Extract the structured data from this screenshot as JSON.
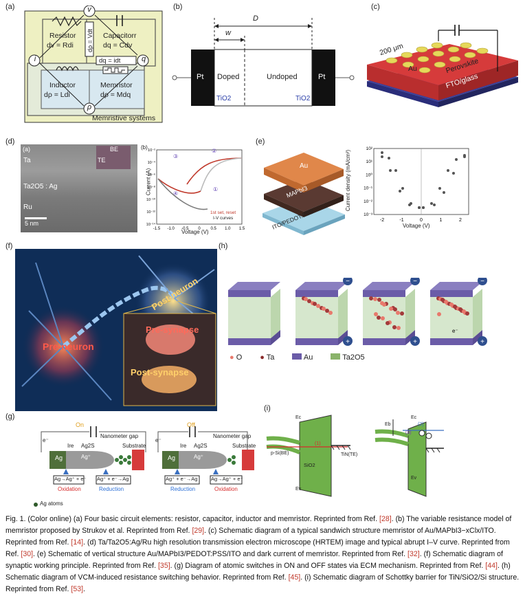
{
  "panels": {
    "a": {
      "label": "(a)",
      "nodes": [
        "v",
        "i",
        "q",
        "ρ"
      ],
      "resistor": {
        "name": "Resistor",
        "eq": "dv = Rdi"
      },
      "capacitor": {
        "name": "Capacitorr",
        "eq": "dq = Cdv"
      },
      "inductor": {
        "name": "Inductor",
        "eq": "dρ = Ldi"
      },
      "memristor": {
        "name": "Memristor",
        "eq": "dρ = Mdq"
      },
      "vertical_eq": "dρ = Vdt",
      "horizontal_eq": "dq = idt",
      "systems": "Memristive systems"
    },
    "b": {
      "label": "(b)",
      "D": "D",
      "w": "w",
      "pt_left": "Pt",
      "pt_right": "Pt",
      "doped": "Doped",
      "undoped": "Undoped",
      "tio2_left": "TiO2",
      "tio2_right": "TiO2"
    },
    "c": {
      "label": "(c)",
      "size": "200 μm",
      "au": "Au",
      "perovskite": "Perovskite",
      "substrate": "FTO/glass"
    },
    "d": {
      "label": "(d)",
      "sub_a": "(a)",
      "sub_b": "(b)",
      "ta": "Ta",
      "mid": "Ta2O5 : Ag",
      "ru": "Ru",
      "scale": "5 nm",
      "be": "BE",
      "te": "TE",
      "ylabel": "Current (A)",
      "xlabel": "Voltage (V)",
      "yticks": [
        "10⁻²",
        "10⁻⁴",
        "10⁻⁶",
        "10⁻⁸",
        "10⁻¹⁰",
        "10⁻¹²",
        "10⁻¹⁴"
      ],
      "xticks": [
        "-1.5",
        "-1.0",
        "-0.5",
        "0",
        "0.5",
        "1.0",
        "1.5"
      ],
      "legend1": "1st set, reset",
      "legend2": "I-V curves",
      "markers": [
        "①",
        "②",
        "③",
        "④"
      ]
    },
    "e": {
      "label": "(e)",
      "au": "Au",
      "mapbi": "MAPbI3",
      "ito": "ITO/PEDOT:PSS",
      "ylabel": "Current density (mA/cm²)",
      "xlabel": "Voltage (V)",
      "yticks": [
        "10²",
        "10¹",
        "10⁰",
        "10⁻¹",
        "10⁻²",
        "10⁻³"
      ],
      "xticks": [
        "-2",
        "-1",
        "0",
        "1",
        "2"
      ]
    },
    "f": {
      "label": "(f)",
      "post_neuron": "Post-neuron",
      "pre_neuron": "Pre-neuron",
      "pre_synapse": "Pre-synapse",
      "post_synapse": "Post-synapse"
    },
    "h": {
      "label": "(h)",
      "legend": [
        "O",
        "Ta",
        "Au",
        "Ta2O5"
      ],
      "minus": "−",
      "plus": "+",
      "electron": "e⁻"
    },
    "g": {
      "label": "(g)",
      "on": "On",
      "off": "Off",
      "ag": "Ag",
      "ire": "Ire",
      "ag2s": "Ag2S",
      "gap": "Nanometer gap",
      "substrate": "Substrate",
      "agplus": "Ag⁺",
      "electron": "e⁻",
      "box_ox_on": "Ag→Ag⁺ + e⁻",
      "box_red_on": "Ag⁺ + e⁻→Ag",
      "box_red_off": "Ag⁺ + e⁻→Ag",
      "box_ox_off": "Ag→Ag⁺ + e⁻",
      "oxidation": "Oxidation",
      "reduction": "Reduction",
      "atoms": "Ag atoms"
    },
    "i": {
      "label": "(i)",
      "ec": "Ec",
      "ev": "Ev",
      "psi": "p-Si(BE)",
      "sio2": "SiO2",
      "tin": "TiN(TE)",
      "one": "(1)",
      "two": "(2)",
      "three": "(3)",
      "eb": "Eb"
    }
  },
  "caption": {
    "intro": "Fig. 1. (Color online) (a) Four basic circuit elements: resistor, capacitor, inductor and memristor. Reprinted from Ref. ",
    "r28": "[28]",
    "t1": ". (b) The variable resistance model of memristor proposed by Strukov et al. Reprinted from Ref. ",
    "r29": "[29]",
    "t2": ". (c) Schematic diagram of a typical sandwich structure memristor of Au/MAPbI3−xClx/ITO. Reprinted from Ref. ",
    "r14": "[14]",
    "t3": ". (d) Ta/Ta2O5:Ag/Ru high resolution transmission electron microscope (HRTEM) image and typical abrupt I–V curve. Reprinted from Ref. ",
    "r30": "[30]",
    "t4": ". (e) Schematic of vertical structure Au/MAPbI3/PEDOT:PSS/ITO and dark current of memristor.  Reprinted from Ref. ",
    "r32": "[32]",
    "t5": ". (f) Schematic diagram of synaptic working principle. Reprinted from Ref. ",
    "r35": "[35]",
    "t6": ". (g) Diagram of atomic switches in ON and OFF states via ECM mechanism. Reprinted from Ref. ",
    "r44": "[44]",
    "t7": ". (h) Schematic diagram of VCM-induced resistance switching behavior. Reprinted from Ref. ",
    "r45": "[45]",
    "t8": ". (i) Schematic diagram of Schottky barrier for TiN/SiO2/Si structure. Reprinted from Ref. ",
    "r53": "[53]",
    "t9": "."
  }
}
